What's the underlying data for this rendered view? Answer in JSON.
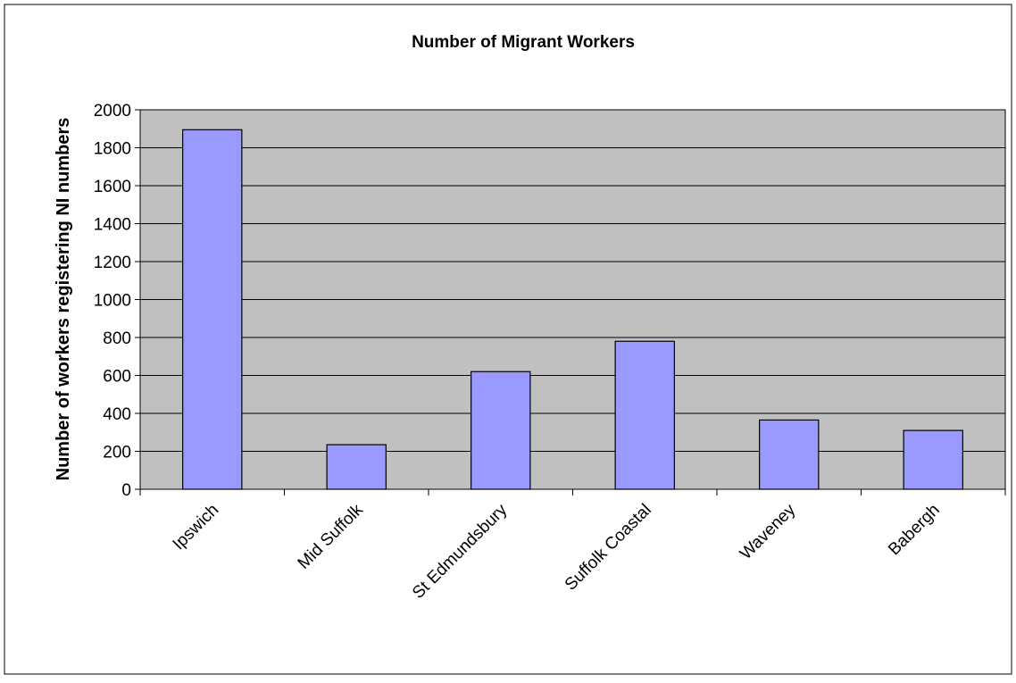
{
  "chart_data": {
    "type": "bar",
    "title": "Number of Migrant Workers",
    "xlabel": "",
    "ylabel": "Number of workers registering NI numbers",
    "categories": [
      "Ipswich",
      "Mid Suffolk",
      "St Edmundsbury",
      "Suffolk Coastal",
      "Waveney",
      "Babergh"
    ],
    "values": [
      1895,
      235,
      620,
      780,
      365,
      310
    ],
    "ylim": [
      0,
      2000
    ],
    "yticks": [
      0,
      200,
      400,
      600,
      800,
      1000,
      1200,
      1400,
      1600,
      1800,
      2000
    ],
    "grid": true,
    "legend": "none"
  },
  "colors": {
    "plot_background": "#c0c0c0",
    "bar_fill": "#9999ff",
    "bar_stroke": "#000000",
    "gridline": "#000000",
    "frame": "#000000"
  }
}
